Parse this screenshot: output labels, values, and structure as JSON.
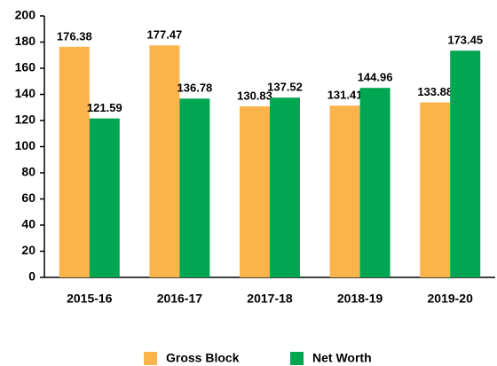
{
  "chart_data": {
    "type": "bar",
    "categories": [
      "2015-16",
      "2016-17",
      "2017-18",
      "2018-19",
      "2019-20"
    ],
    "series": [
      {
        "name": "Gross Block",
        "color": "#fbb34c",
        "values": [
          176.38,
          177.47,
          130.83,
          131.41,
          133.88
        ]
      },
      {
        "name": "Net Worth",
        "color": "#00a651",
        "values": [
          121.59,
          136.78,
          137.52,
          144.96,
          173.45
        ]
      }
    ],
    "ylim": [
      0,
      200
    ],
    "yticks": [
      0,
      20,
      40,
      60,
      80,
      100,
      120,
      140,
      160,
      180,
      200
    ],
    "grid": false
  }
}
